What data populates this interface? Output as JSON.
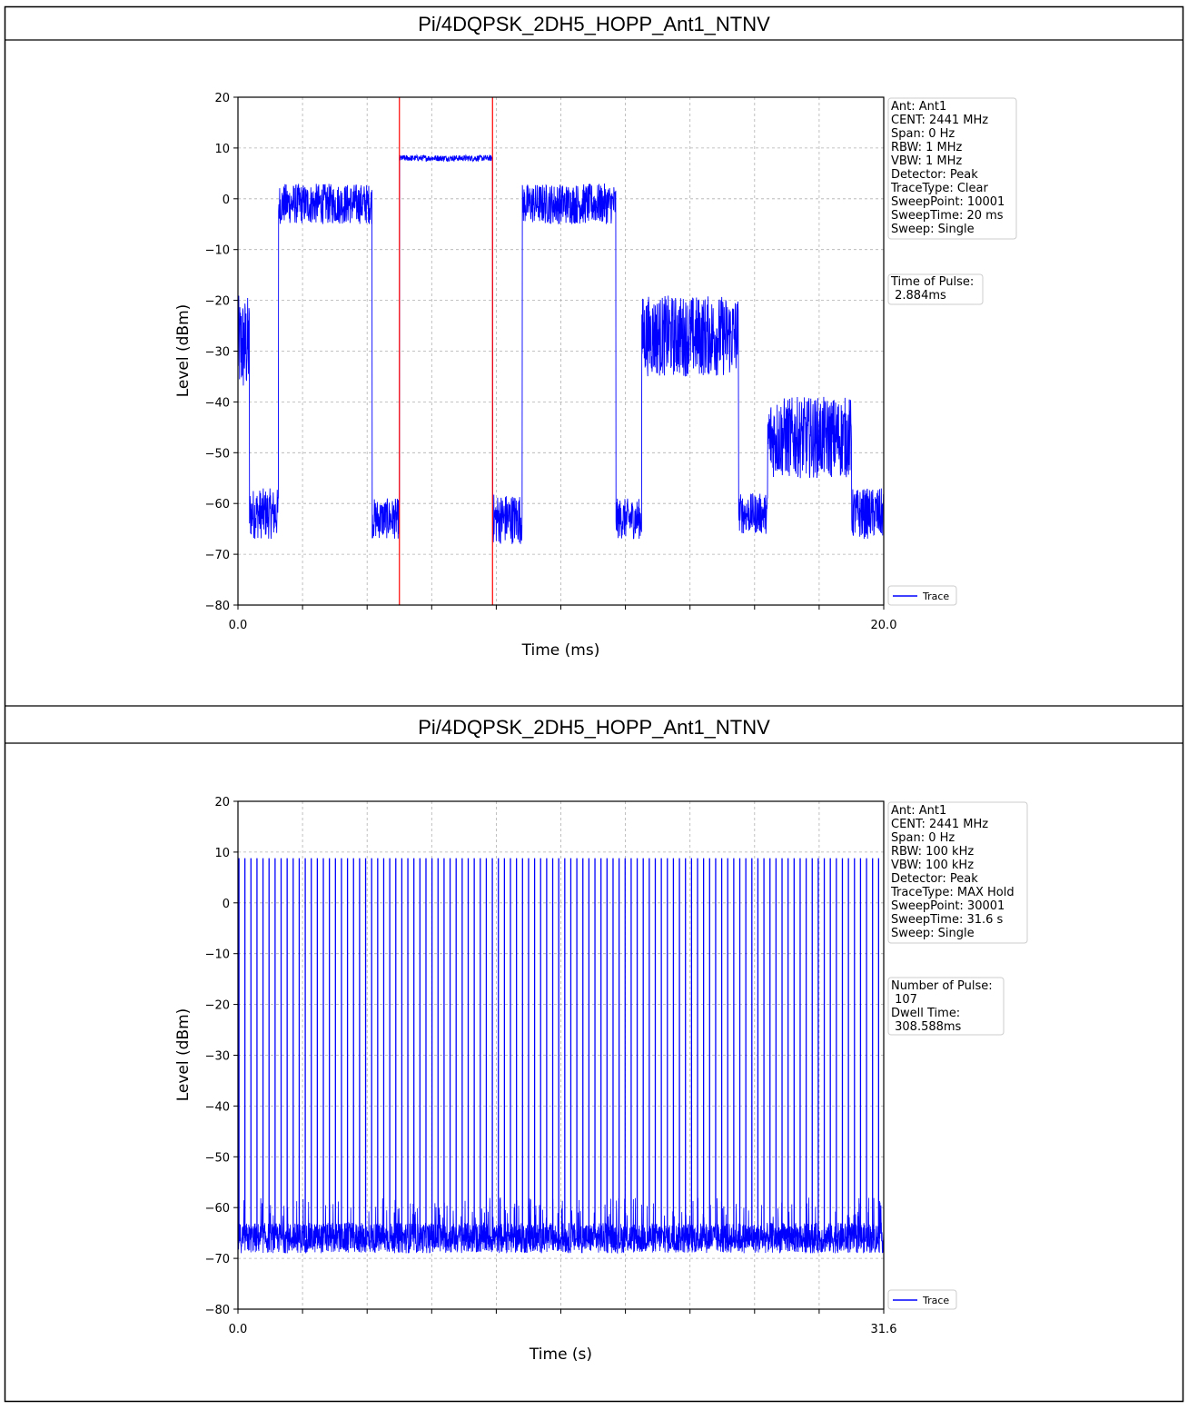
{
  "panels": [
    {
      "caption": "Pi/4DQPSK_2DH5_HOPP_Ant1_NTNV",
      "info": [
        "Ant: Ant1",
        "CENT: 2441 MHz",
        "Span: 0 Hz",
        "RBW: 1 MHz",
        "VBW: 1 MHz",
        "Detector: Peak",
        "TraceType: Clear",
        "SweepPoint: 10001",
        "SweepTime: 20 ms",
        "Sweep: Single"
      ],
      "result": [
        "Time of Pulse:",
        " 2.884ms"
      ],
      "legend": "Trace"
    },
    {
      "caption": "Pi/4DQPSK_2DH5_HOPP_Ant1_NTNV",
      "info": [
        "Ant: Ant1",
        "CENT: 2441 MHz",
        "Span: 0 Hz",
        "RBW: 100 kHz",
        "VBW: 100 kHz",
        "Detector: Peak",
        "TraceType: MAX Hold",
        "SweepPoint: 30001",
        "SweepTime: 31.6 s",
        "Sweep: Single"
      ],
      "result": [
        "Number of Pulse:",
        " 107",
        "Dwell Time:",
        " 308.588ms"
      ],
      "legend": "Trace"
    }
  ],
  "chart_data": [
    {
      "type": "line",
      "xlabel": "Time (ms)",
      "ylabel": "Level (dBm)",
      "xlim": [
        0,
        20
      ],
      "ylim": [
        -80,
        20
      ],
      "x_tick_labels": [
        "0.0",
        "20.0"
      ],
      "y_ticks": [
        20,
        10,
        0,
        -10,
        -20,
        -30,
        -40,
        -50,
        -60,
        -70,
        -80
      ],
      "grid": true,
      "legend_position": "lower-right-outside",
      "trace_color": "#0000ff",
      "marker_color": "#ff0000",
      "markers_x": [
        5.0,
        7.884
      ],
      "segments": [
        {
          "x0": 0.0,
          "x1": 0.35,
          "center": -29,
          "spread": 10
        },
        {
          "x0": 0.35,
          "x1": 1.25,
          "center": -62,
          "spread": 5
        },
        {
          "x0": 1.25,
          "x1": 4.15,
          "center": -1,
          "spread": 4
        },
        {
          "x0": 4.15,
          "x1": 5.0,
          "center": -63,
          "spread": 4
        },
        {
          "x0": 5.0,
          "x1": 7.884,
          "center": 8,
          "spread": 0.6
        },
        {
          "x0": 7.884,
          "x1": 8.8,
          "center": -63,
          "spread": 5
        },
        {
          "x0": 8.8,
          "x1": 11.7,
          "center": -1,
          "spread": 4
        },
        {
          "x0": 11.7,
          "x1": 12.5,
          "center": -63,
          "spread": 4
        },
        {
          "x0": 12.5,
          "x1": 15.5,
          "center": -27,
          "spread": 8
        },
        {
          "x0": 15.5,
          "x1": 16.4,
          "center": -62,
          "spread": 4
        },
        {
          "x0": 16.4,
          "x1": 19.0,
          "center": -47,
          "spread": 8
        },
        {
          "x0": 19.0,
          "x1": 20.0,
          "center": -62,
          "spread": 5
        }
      ]
    },
    {
      "type": "line",
      "xlabel": "Time (s)",
      "ylabel": "Level (dBm)",
      "xlim": [
        0,
        31.6
      ],
      "ylim": [
        -80,
        20
      ],
      "x_tick_labels": [
        "0.0",
        "31.6"
      ],
      "y_ticks": [
        20,
        10,
        0,
        -10,
        -20,
        -30,
        -40,
        -50,
        -60,
        -70,
        -80
      ],
      "grid": true,
      "legend_position": "lower-right-outside",
      "trace_color": "#0000ff",
      "pulse_count": 107,
      "pulse_peak": 8.8,
      "noise_floor_center": -66,
      "noise_floor_spread": 3
    }
  ]
}
